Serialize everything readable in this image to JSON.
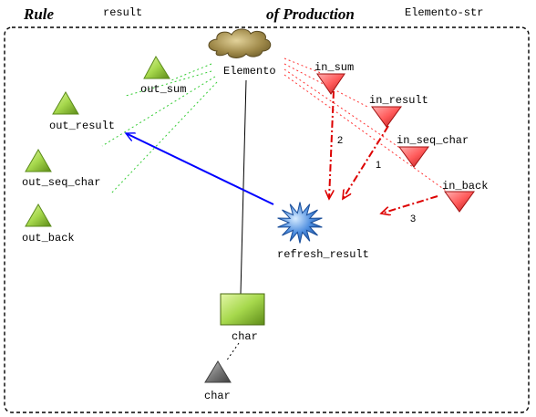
{
  "header": {
    "rule_label": "Rule",
    "rule_name": "result",
    "production_label": "of Production",
    "production_name": "Elemento-str"
  },
  "nodes": {
    "elemento": "Elemento",
    "refresh_result": "refresh_result",
    "char_class": "char",
    "char_object": "char"
  },
  "outputs": [
    "out_sum",
    "out_result",
    "out_seq_char",
    "out_back"
  ],
  "inputs": [
    "in_sum",
    "in_result",
    "in_seq_char",
    "in_back"
  ],
  "flow_numbers": [
    "2",
    "1",
    "3"
  ],
  "colors": {
    "output_fill": "#9ACD32",
    "input_fill": "#FF5A5A",
    "refresh_star": "#3F7FD0",
    "class_box": "#A8C860",
    "char_triangle": "#7A7A7A",
    "cloud": "#A08A4A",
    "output_link": "#33CC33",
    "input_link": "#FF3333",
    "flow_arrow": "#DD0000",
    "result_arrow": "#0000FF"
  },
  "icons": {
    "elemento": "cloud-icon",
    "refresh_result": "starburst-icon",
    "outputs": "green-triangle-icon",
    "inputs": "red-inverted-triangle-icon",
    "char_class": "green-rectangle-icon",
    "char_object": "grey-triangle-icon"
  }
}
